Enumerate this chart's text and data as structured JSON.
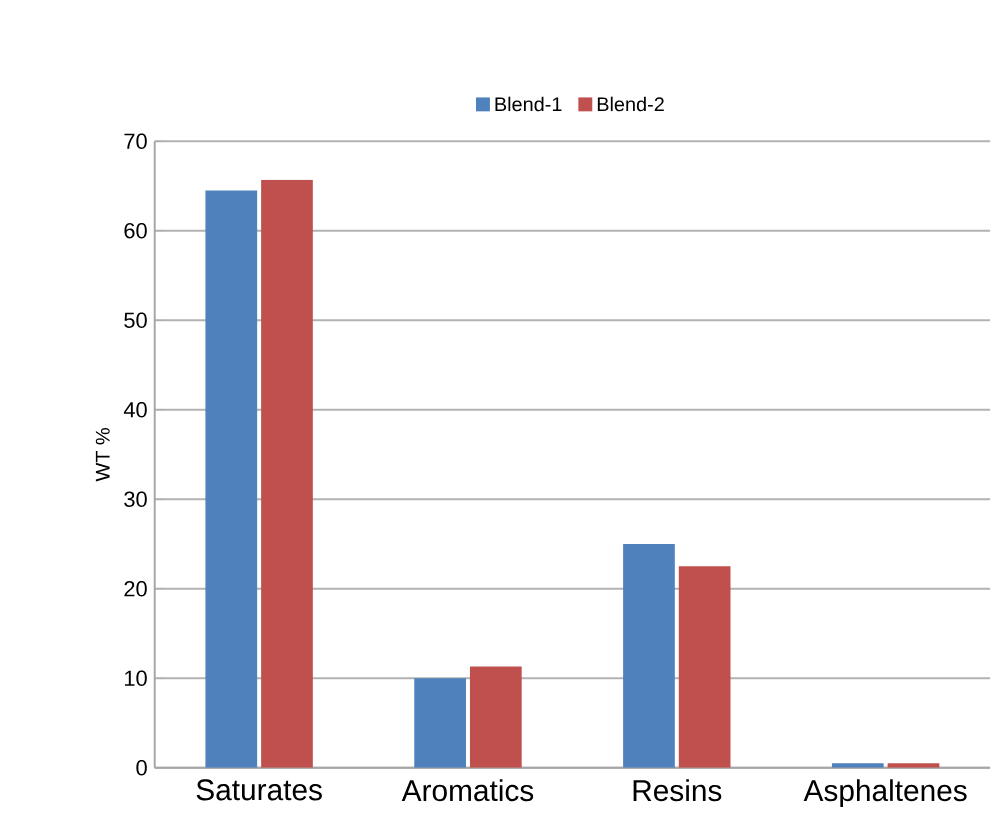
{
  "chart_data": {
    "type": "bar",
    "ylabel": "WT %",
    "categories": [
      "Saturates",
      "Aromatics",
      "Resins",
      "Asphaltenes"
    ],
    "series": [
      {
        "name": "Blend-1",
        "color": "#4f81bd",
        "values": [
          64.5,
          10,
          25,
          0.5
        ]
      },
      {
        "name": "Blend-2",
        "color": "#c0504d",
        "values": [
          65.7,
          11.3,
          22.5,
          0.5
        ]
      }
    ],
    "ylim": [
      0,
      70
    ],
    "yticks": [
      0,
      10,
      20,
      30,
      40,
      50,
      60,
      70
    ],
    "grid": "y",
    "legend": "top"
  }
}
